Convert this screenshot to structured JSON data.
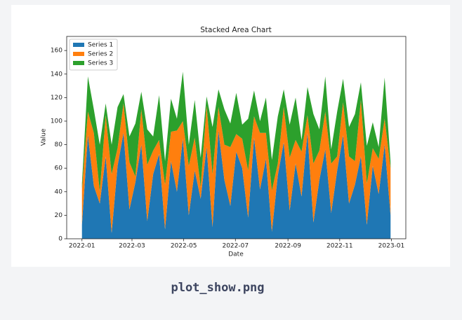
{
  "chart_data": {
    "type": "stacked-area",
    "title": "Stacked Area Chart",
    "xlabel": "Date",
    "ylabel": "Value",
    "x": [
      0,
      7,
      14,
      21,
      28,
      35,
      42,
      49,
      56,
      63,
      70,
      77,
      84,
      91,
      98,
      105,
      112,
      119,
      126,
      133,
      140,
      147,
      154,
      161,
      168,
      175,
      182,
      189,
      196,
      203,
      210,
      217,
      224,
      231,
      238,
      245,
      252,
      259,
      266,
      273,
      280,
      287,
      294,
      301,
      308,
      315,
      322,
      329,
      336,
      343,
      350,
      357,
      364
    ],
    "series": [
      {
        "name": "Series 1",
        "color": "#1f77b4",
        "values": [
          12,
          88,
          45,
          30,
          70,
          5,
          62,
          90,
          25,
          48,
          80,
          15,
          55,
          72,
          8,
          66,
          40,
          85,
          20,
          58,
          34,
          78,
          10,
          92,
          50,
          28,
          74,
          60,
          18,
          86,
          42,
          68,
          6,
          54,
          82,
          24,
          64,
          36,
          90,
          14,
          50,
          76,
          22,
          58,
          88,
          30,
          46,
          70,
          12,
          62,
          38,
          80,
          20
        ]
      },
      {
        "name": "Series 2",
        "color": "#ff7f0e",
        "values": [
          30,
          20,
          45,
          10,
          35,
          50,
          15,
          25,
          40,
          5,
          30,
          48,
          20,
          12,
          38,
          25,
          52,
          15,
          42,
          28,
          10,
          35,
          45,
          20,
          30,
          50,
          15,
          25,
          40,
          18,
          48,
          22,
          35,
          10,
          30,
          45,
          20,
          38,
          15,
          50,
          25,
          32,
          42,
          12,
          28,
          40,
          20,
          48,
          35,
          15,
          30,
          22,
          40
        ]
      },
      {
        "name": "Series 3",
        "color": "#2ca02c",
        "values": [
          5,
          30,
          20,
          40,
          10,
          25,
          35,
          8,
          22,
          45,
          15,
          30,
          12,
          38,
          20,
          28,
          10,
          42,
          18,
          32,
          25,
          8,
          40,
          15,
          30,
          20,
          35,
          12,
          44,
          22,
          10,
          30,
          26,
          40,
          15,
          28,
          36,
          10,
          24,
          42,
          18,
          30,
          12,
          38,
          20,
          25,
          40,
          15,
          32,
          22,
          10,
          35,
          5
        ]
      }
    ],
    "xlim": [
      -18,
      382
    ],
    "xticks": [
      {
        "value": 0,
        "label": "2022-01"
      },
      {
        "value": 59,
        "label": "2022-03"
      },
      {
        "value": 120,
        "label": "2022-05"
      },
      {
        "value": 181,
        "label": "2022-07"
      },
      {
        "value": 243,
        "label": "2022-09"
      },
      {
        "value": 304,
        "label": "2022-11"
      },
      {
        "value": 365,
        "label": "2023-01"
      }
    ],
    "ylim": [
      0,
      172
    ],
    "yticks": [
      0,
      20,
      40,
      60,
      80,
      100,
      120,
      140,
      160
    ],
    "grid": false,
    "legend": "upper left"
  },
  "caption": "plot_show.png"
}
